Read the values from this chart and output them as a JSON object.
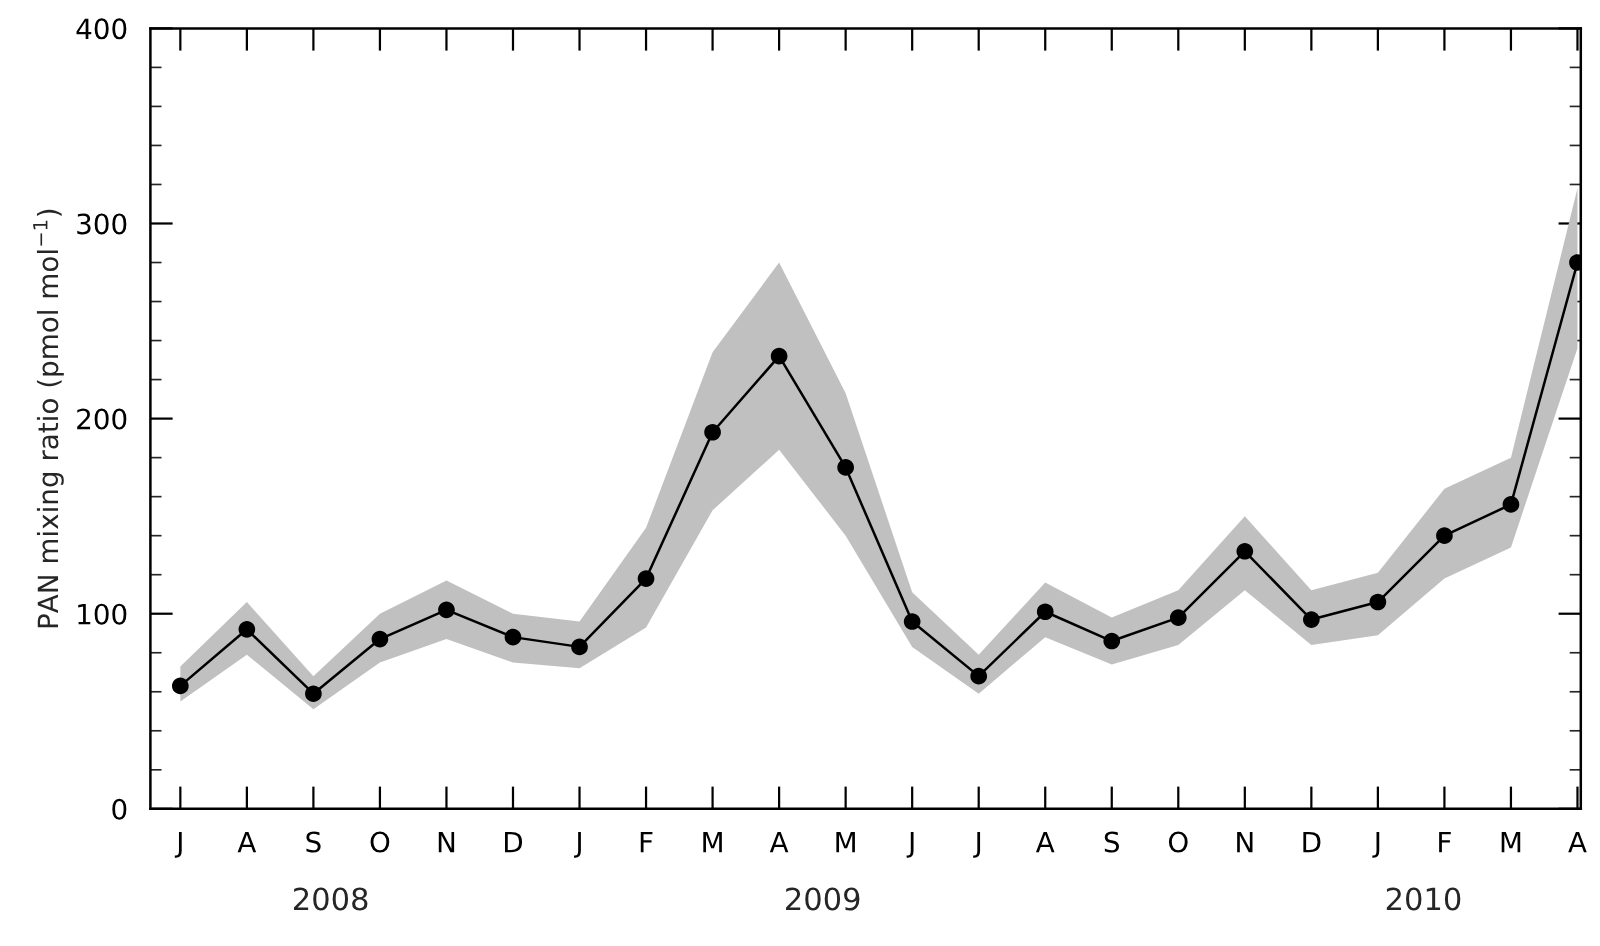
{
  "chart_data": {
    "type": "line",
    "ylabel": "PAN mixing ratio (pmol mol$^{−1}$)",
    "categories": [
      "J",
      "A",
      "S",
      "O",
      "N",
      "D",
      "J",
      "F",
      "M",
      "A",
      "M",
      "J",
      "J",
      "A",
      "S",
      "O",
      "N",
      "D",
      "J",
      "F",
      "M",
      "A"
    ],
    "series": [
      {
        "color": "#000000",
        "values": [
          63,
          92,
          59,
          87,
          102,
          88,
          83,
          118,
          193,
          232,
          175,
          96,
          68,
          101,
          86,
          98,
          132,
          97,
          106,
          140,
          156,
          280
        ],
        "lower": [
          55,
          79,
          51,
          75,
          87,
          75,
          72,
          93,
          153,
          184,
          140,
          83,
          59,
          88,
          74,
          84,
          112,
          84,
          89,
          118,
          134,
          236
        ],
        "upper": [
          73,
          106,
          68,
          100,
          117,
          100,
          96,
          144,
          234,
          280,
          213,
          111,
          79,
          116,
          98,
          112,
          150,
          112,
          121,
          164,
          180,
          318
        ]
      }
    ],
    "ylim": [
      0,
      400
    ],
    "yticks": [
      0,
      100,
      200,
      300,
      400
    ],
    "marker": "circle",
    "line_style": "solid",
    "grid": false,
    "legend": false,
    "annotations": [
      "2008",
      "2009",
      "2010"
    ]
  }
}
